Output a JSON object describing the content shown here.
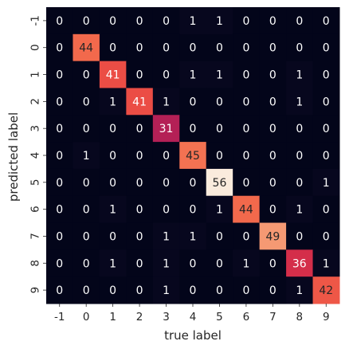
{
  "chart_data": {
    "type": "heatmap",
    "title": "",
    "xlabel": "true label",
    "ylabel": "predicted label",
    "x_categories": [
      "-1",
      "0",
      "1",
      "2",
      "3",
      "4",
      "5",
      "6",
      "7",
      "8",
      "9"
    ],
    "y_categories": [
      "-1",
      "0",
      "1",
      "2",
      "3",
      "4",
      "5",
      "6",
      "7",
      "8",
      "9"
    ],
    "values": [
      [
        0,
        0,
        0,
        0,
        0,
        1,
        1,
        0,
        0,
        0,
        0
      ],
      [
        0,
        44,
        0,
        0,
        0,
        0,
        0,
        0,
        0,
        0,
        0
      ],
      [
        0,
        0,
        41,
        0,
        0,
        1,
        1,
        0,
        0,
        1,
        0
      ],
      [
        0,
        0,
        1,
        41,
        1,
        0,
        0,
        0,
        0,
        1,
        0
      ],
      [
        0,
        0,
        0,
        0,
        31,
        0,
        0,
        0,
        0,
        0,
        0
      ],
      [
        0,
        1,
        0,
        0,
        0,
        45,
        0,
        0,
        0,
        0,
        0
      ],
      [
        0,
        0,
        0,
        0,
        0,
        0,
        56,
        0,
        0,
        0,
        1
      ],
      [
        0,
        0,
        1,
        0,
        0,
        0,
        1,
        44,
        0,
        1,
        0
      ],
      [
        0,
        0,
        0,
        0,
        1,
        1,
        0,
        0,
        49,
        0,
        0
      ],
      [
        0,
        0,
        1,
        0,
        1,
        0,
        0,
        1,
        0,
        36,
        1
      ],
      [
        0,
        0,
        0,
        0,
        1,
        0,
        0,
        0,
        0,
        1,
        42
      ]
    ],
    "color_range": [
      0,
      56
    ],
    "colormap": "rocket",
    "colorbar": false,
    "grid": false
  }
}
